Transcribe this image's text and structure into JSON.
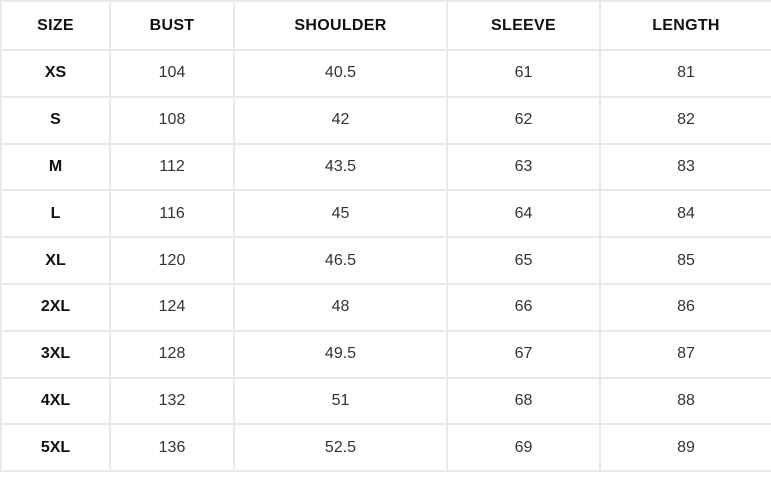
{
  "chart_data": {
    "type": "table",
    "columns": [
      "SIZE",
      "BUST",
      "SHOULDER",
      "SLEEVE",
      "LENGTH"
    ],
    "rows": [
      {
        "size": "XS",
        "values": [
          "104",
          "40.5",
          "61",
          "81"
        ]
      },
      {
        "size": "S",
        "values": [
          "108",
          "42",
          "62",
          "82"
        ]
      },
      {
        "size": "M",
        "values": [
          "112",
          "43.5",
          "63",
          "83"
        ]
      },
      {
        "size": "L",
        "values": [
          "116",
          "45",
          "64",
          "84"
        ]
      },
      {
        "size": "XL",
        "values": [
          "120",
          "46.5",
          "65",
          "85"
        ]
      },
      {
        "size": "2XL",
        "values": [
          "124",
          "48",
          "66",
          "86"
        ]
      },
      {
        "size": "3XL",
        "values": [
          "128",
          "49.5",
          "67",
          "87"
        ]
      },
      {
        "size": "4XL",
        "values": [
          "132",
          "51",
          "68",
          "88"
        ]
      },
      {
        "size": "5XL",
        "values": [
          "136",
          "52.5",
          "69",
          "89"
        ]
      }
    ]
  },
  "colors": {
    "background": "#ffffff",
    "border": "#e9e9e9",
    "header_text": "#111111",
    "value_text": "#333333"
  }
}
